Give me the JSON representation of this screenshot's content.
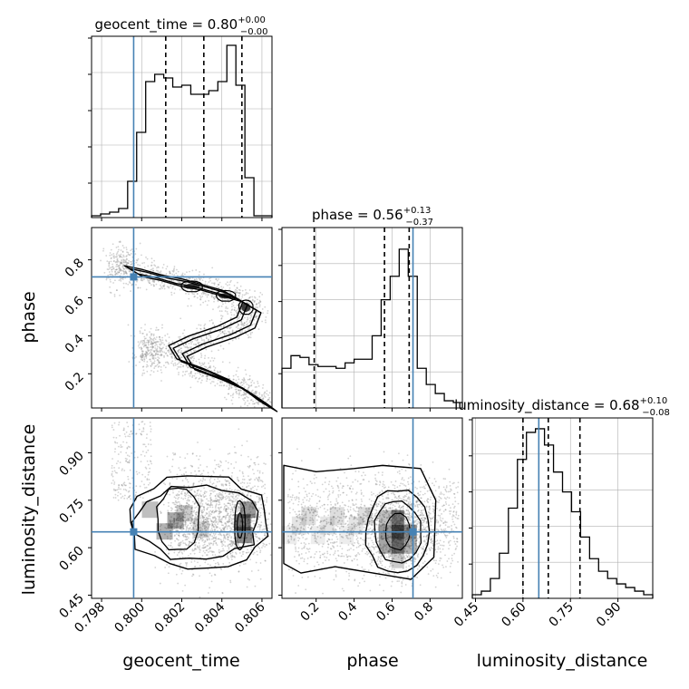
{
  "colors": {
    "truth": "#4682b4",
    "hist": "#000000",
    "grid": "#b0b0b0",
    "scatter": "#808080"
  },
  "chart_data": [
    {
      "type": "histogram",
      "panel": "geocent_time",
      "title_main": "geocent_time = 0.80",
      "title_sup": "+0.00",
      "title_sub": "−0.00",
      "xlim": [
        0.7975,
        0.8065
      ],
      "ylim": [
        0,
        1
      ],
      "truth": 0.7996,
      "quantiles": [
        0.8012,
        0.8031,
        0.805
      ],
      "bin_edges": [
        0.7975,
        0.79795,
        0.7984,
        0.79885,
        0.7993,
        0.79975,
        0.8002,
        0.80065,
        0.8011,
        0.80155,
        0.802,
        0.80245,
        0.8029,
        0.80335,
        0.8038,
        0.80425,
        0.8047,
        0.80515,
        0.8056,
        0.80605,
        0.8065
      ],
      "counts": [
        0.01,
        0.02,
        0.03,
        0.05,
        0.2,
        0.47,
        0.75,
        0.79,
        0.77,
        0.72,
        0.73,
        0.68,
        0.68,
        0.7,
        0.75,
        0.95,
        0.73,
        0.22,
        0.01,
        0.01
      ]
    },
    {
      "type": "contour2d",
      "panel": "phase_vs_geocent_time",
      "xlim": [
        0.7975,
        0.8065
      ],
      "ylim": [
        0.02,
        0.97
      ],
      "ylabel": "phase",
      "ytick_labels": [
        "0.2",
        "0.4",
        "0.6",
        "0.8"
      ],
      "yticks": [
        0.2,
        0.4,
        0.6,
        0.8
      ],
      "truth_x": 0.7996,
      "truth_y": 0.71,
      "ridge": [
        [
          0.7996,
          0.74
        ],
        [
          0.8005,
          0.72
        ],
        [
          0.8015,
          0.69
        ],
        [
          0.8025,
          0.67
        ],
        [
          0.8035,
          0.64
        ],
        [
          0.8045,
          0.61
        ],
        [
          0.8055,
          0.55
        ],
        [
          0.8052,
          0.47
        ],
        [
          0.8042,
          0.42
        ],
        [
          0.8028,
          0.37
        ],
        [
          0.8018,
          0.32
        ],
        [
          0.8022,
          0.25
        ],
        [
          0.8035,
          0.2
        ],
        [
          0.8048,
          0.14
        ],
        [
          0.8058,
          0.07
        ],
        [
          0.8063,
          0.03
        ]
      ]
    },
    {
      "type": "histogram",
      "panel": "phase",
      "title_main": "phase = 0.56",
      "title_sup": "+0.13",
      "title_sub": "−0.37",
      "xlim": [
        0.02,
        0.97
      ],
      "ylim": [
        0,
        1
      ],
      "truth": 0.71,
      "quantiles": [
        0.19,
        0.56,
        0.69
      ],
      "bin_edges": [
        0.02,
        0.0675,
        0.115,
        0.1625,
        0.21,
        0.2575,
        0.305,
        0.3525,
        0.4,
        0.4475,
        0.495,
        0.5425,
        0.59,
        0.6375,
        0.685,
        0.7325,
        0.78,
        0.8275,
        0.875,
        0.9225,
        0.97
      ],
      "counts": [
        0.22,
        0.29,
        0.28,
        0.24,
        0.23,
        0.23,
        0.22,
        0.25,
        0.27,
        0.27,
        0.4,
        0.6,
        0.73,
        0.88,
        0.73,
        0.22,
        0.13,
        0.08,
        0.04,
        0.03
      ]
    },
    {
      "type": "contour2d",
      "panel": "luminosity_distance_vs_geocent_time",
      "xlim": [
        0.7975,
        0.8065
      ],
      "ylim": [
        0.44,
        1.01
      ],
      "xlabel": "geocent_time",
      "ylabel": "luminosity_distance",
      "xtick_labels": [
        "0.798",
        "0.800",
        "0.802",
        "0.804",
        "0.806"
      ],
      "xticks": [
        0.798,
        0.8,
        0.802,
        0.804,
        0.806
      ],
      "ytick_labels": [
        "0.45",
        "0.60",
        "0.75",
        "0.90"
      ],
      "yticks": [
        0.45,
        0.6,
        0.75,
        0.9
      ],
      "truth_x": 0.7996,
      "truth_y": 0.65,
      "center_a": [
        0.8018,
        0.69
      ],
      "center_b": [
        0.8049,
        0.67
      ]
    },
    {
      "type": "contour2d",
      "panel": "luminosity_distance_vs_phase",
      "xlim": [
        0.02,
        0.97
      ],
      "ylim": [
        0.44,
        1.01
      ],
      "xlabel": "phase",
      "xtick_labels": [
        "0.2",
        "0.4",
        "0.6",
        "0.8"
      ],
      "xticks": [
        0.2,
        0.4,
        0.6,
        0.8
      ],
      "truth_x": 0.71,
      "truth_y": 0.65,
      "center": [
        0.63,
        0.65
      ]
    },
    {
      "type": "histogram",
      "panel": "luminosity_distance",
      "title_main": "luminosity_distance = 0.68",
      "title_sup": "+0.10",
      "title_sub": "−0.08",
      "xlim": [
        0.44,
        1.01
      ],
      "ylim": [
        0,
        1
      ],
      "xlabel": "luminosity_distance",
      "xtick_labels": [
        "0.45",
        "0.60",
        "0.75",
        "0.90"
      ],
      "xticks": [
        0.45,
        0.6,
        0.75,
        0.9
      ],
      "truth": 0.65,
      "quantiles": [
        0.6,
        0.68,
        0.78
      ],
      "bin_edges": [
        0.44,
        0.4685,
        0.497,
        0.5255,
        0.554,
        0.5825,
        0.611,
        0.6395,
        0.668,
        0.6965,
        0.725,
        0.7535,
        0.782,
        0.8105,
        0.839,
        0.8675,
        0.896,
        0.9245,
        0.953,
        0.9815,
        1.01
      ],
      "counts": [
        0.02,
        0.04,
        0.11,
        0.25,
        0.5,
        0.77,
        0.92,
        0.94,
        0.85,
        0.7,
        0.59,
        0.48,
        0.34,
        0.22,
        0.15,
        0.11,
        0.08,
        0.06,
        0.04,
        0.02
      ]
    }
  ]
}
